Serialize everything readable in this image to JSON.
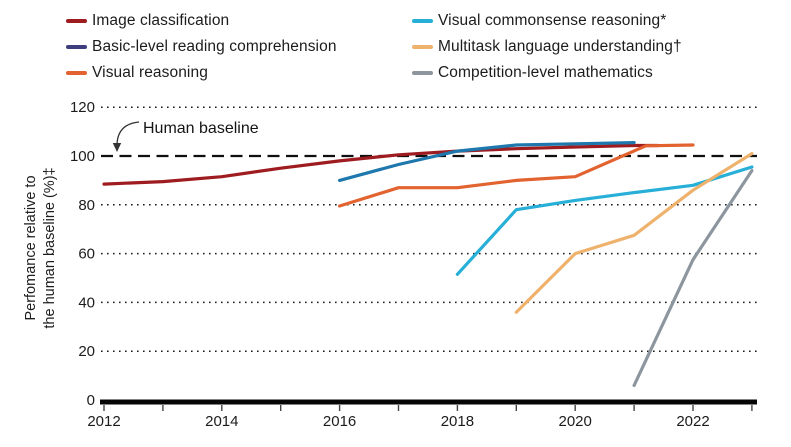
{
  "figure": {
    "background": "#ffffff",
    "text_color": "#1c1c1c"
  },
  "chart_data": {
    "type": "line",
    "title": "",
    "xlabel": "",
    "ylabel": "Perfomance relative to the human baseline (%)‡",
    "ylabel_lines": [
      "Perfomance relative to",
      "the human baseline (%)‡"
    ],
    "xlim": [
      2012,
      2023.2
    ],
    "ylim": [
      0,
      120
    ],
    "yticks": [
      0,
      20,
      40,
      60,
      80,
      100,
      120
    ],
    "xticks_minor": [
      2012,
      2013,
      2014,
      2015,
      2016,
      2017,
      2018,
      2019,
      2020,
      2021,
      2022,
      2023
    ],
    "xtick_labels": [
      2012,
      2014,
      2016,
      2018,
      2020,
      2022
    ],
    "grid_dotted_at": [
      20,
      40,
      60,
      80,
      120
    ],
    "grid_color": "#1a1a1a",
    "legend_position": "top",
    "baseline": {
      "value": 100,
      "label": "Human baseline",
      "line_style": "dashed",
      "line_color": "#0f0f0f"
    },
    "series": [
      {
        "name": "Image classification",
        "color": "#9e1b1f",
        "points": [
          [
            2012,
            88.5
          ],
          [
            2013,
            89.5
          ],
          [
            2014,
            91.5
          ],
          [
            2015,
            95
          ],
          [
            2016,
            98
          ],
          [
            2017,
            100.5
          ],
          [
            2018,
            102
          ],
          [
            2019,
            103
          ],
          [
            2020,
            103.7
          ],
          [
            2021,
            104.3
          ],
          [
            2021.4,
            104.3
          ]
        ]
      },
      {
        "name": "Basic-level reading comprehension",
        "color": "#1e78ae",
        "swatch_color": "#3e3e7c",
        "points": [
          [
            2016,
            90
          ],
          [
            2017,
            96.5
          ],
          [
            2018,
            102
          ],
          [
            2019,
            104.5
          ],
          [
            2020,
            105
          ],
          [
            2021,
            105.5
          ]
        ]
      },
      {
        "name": "Visual reasoning",
        "color": "#e2632f",
        "points": [
          [
            2016,
            79.5
          ],
          [
            2017,
            87
          ],
          [
            2018,
            87
          ],
          [
            2019,
            90
          ],
          [
            2020,
            91.5
          ],
          [
            2021.2,
            104.2
          ],
          [
            2022,
            104.5
          ]
        ]
      },
      {
        "name": "Visual commonsense reasoning*",
        "color": "#27afd8",
        "points": [
          [
            2018,
            51.5
          ],
          [
            2019,
            78
          ],
          [
            2020,
            81.8
          ],
          [
            2021,
            85
          ],
          [
            2022,
            88
          ],
          [
            2023,
            95.5
          ]
        ]
      },
      {
        "name": "Multitask language understanding†",
        "color": "#eeb26d",
        "points": [
          [
            2019,
            36
          ],
          [
            2020,
            60
          ],
          [
            2021,
            67.5
          ],
          [
            2022,
            86
          ],
          [
            2023,
            101
          ]
        ]
      },
      {
        "name": "Competition-level mathematics",
        "color": "#8d969e",
        "points": [
          [
            2021,
            6
          ],
          [
            2022,
            57.5
          ],
          [
            2023,
            94
          ]
        ]
      }
    ]
  }
}
